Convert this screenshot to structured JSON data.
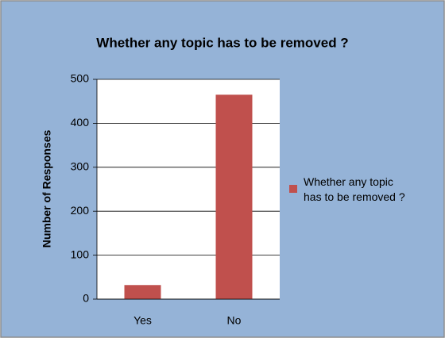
{
  "chart_data": {
    "type": "bar",
    "title": "Whether any topic has to be removed ?",
    "ylabel": "Number of Responses",
    "categories": [
      "Yes",
      "No"
    ],
    "series": [
      {
        "name": "Whether any topic has to be removed ?",
        "color": "#c0504d",
        "values": [
          32,
          465
        ]
      }
    ],
    "ylim": [
      0,
      500
    ],
    "yticks": [
      0,
      100,
      200,
      300,
      400,
      500
    ],
    "grid": true,
    "legend": "right"
  }
}
